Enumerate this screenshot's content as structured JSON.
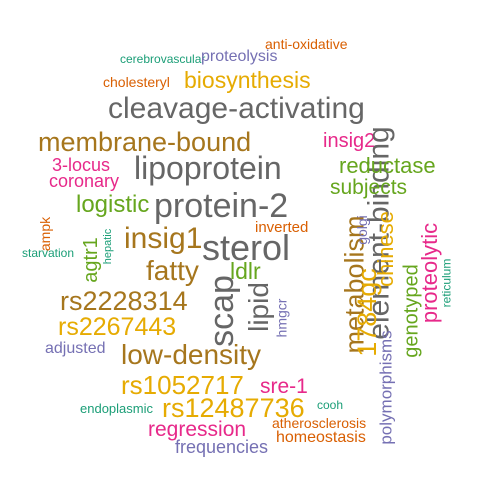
{
  "palette": {
    "orange": "#d95f02",
    "purple": "#7570b3",
    "teal": "#1b9e77",
    "magenta": "#e7298a",
    "green": "#66a61e",
    "gold": "#e6ab02",
    "brown": "#a6761d",
    "gray": "#666666"
  },
  "words": [
    "anti-oxidative",
    "cerebrovascular",
    "proteolysis",
    "cholesteryl",
    "biosynthesis",
    "cleavage-activating",
    "membrane-bound",
    "insig2",
    "element-binding",
    "3-locus",
    "lipoprotein",
    "reductase",
    "coronary",
    "subjects",
    "logistic",
    "protein-2",
    "metabolism",
    "ampk",
    "golgi",
    "inverted",
    "chinese",
    "insig1",
    "sterol",
    "agtr1",
    "hepatic",
    "starvation",
    "proteolytic",
    "reticulum",
    "fatty",
    "ldlr",
    "lipid",
    "1784gc",
    "genotyped",
    "rs2228314",
    "scap",
    "rs2267443",
    "hmgcr",
    "adjusted",
    "low-density",
    "polymorphisms",
    "rs1052717",
    "sre-1",
    "endoplasmic",
    "rs12487736",
    "cooh",
    "regression",
    "atherosclerosis",
    "homeostasis",
    "frequencies"
  ]
}
